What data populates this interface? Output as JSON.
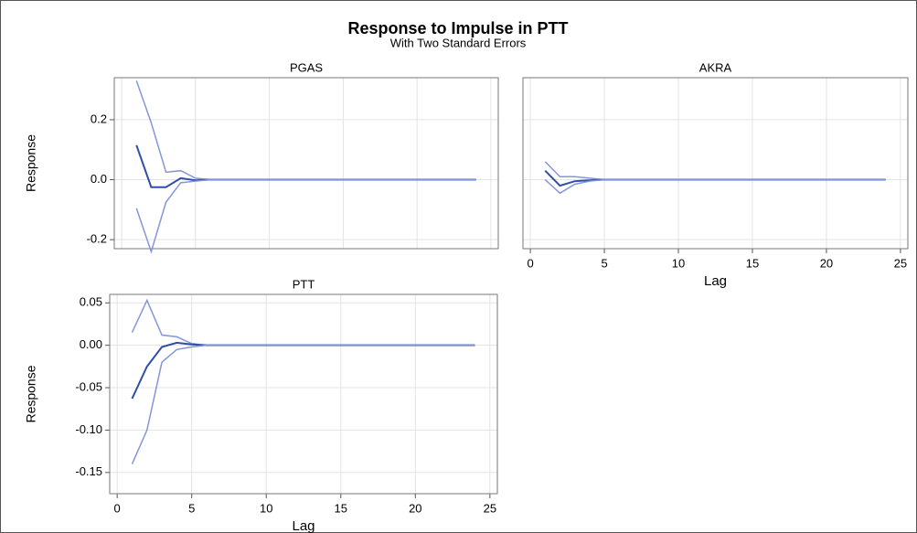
{
  "title": "Response to Impulse in PTT",
  "subtitle": "With Two Standard Errors",
  "chart_data": [
    {
      "type": "line",
      "title": "PGAS",
      "ylabel": "Response",
      "grid": true,
      "show_xtick_labels": false,
      "show_ytick_labels": true,
      "x": [
        1,
        2,
        3,
        4,
        5,
        6,
        7,
        8,
        9,
        10,
        11,
        12,
        13,
        14,
        15,
        16,
        17,
        18,
        19,
        20,
        21,
        22,
        23,
        24
      ],
      "xlim": [
        -0.5,
        25.5
      ],
      "xticks": [
        0,
        5,
        10,
        15,
        20,
        25
      ],
      "ylim": [
        -0.23,
        0.34
      ],
      "yticks": [
        -0.2,
        {
          "value": 0,
          "label": "0.0"
        },
        0.2
      ],
      "series": [
        {
          "color": "#8596d8",
          "values": [
            0.33,
            0.19,
            0.025,
            0.03,
            0.005,
            0,
            0,
            0,
            0,
            0,
            0,
            0,
            0,
            0,
            0,
            0,
            0,
            0,
            0,
            0,
            0,
            0,
            0,
            0
          ]
        },
        {
          "color": "#2f4ea8",
          "values": [
            0.115,
            -0.025,
            -0.025,
            0.005,
            -0.002,
            0,
            0,
            0,
            0,
            0,
            0,
            0,
            0,
            0,
            0,
            0,
            0,
            0,
            0,
            0,
            0,
            0,
            0,
            0
          ]
        },
        {
          "color": "#8596d8",
          "values": [
            -0.095,
            -0.24,
            -0.075,
            -0.01,
            -0.005,
            0,
            0,
            0,
            0,
            0,
            0,
            0,
            0,
            0,
            0,
            0,
            0,
            0,
            0,
            0,
            0,
            0,
            0,
            0
          ]
        }
      ]
    },
    {
      "type": "line",
      "title": "AKRA",
      "xlabel": "Lag",
      "grid": true,
      "show_xtick_labels": true,
      "show_ytick_labels": false,
      "x": [
        1,
        2,
        3,
        4,
        5,
        6,
        7,
        8,
        9,
        10,
        11,
        12,
        13,
        14,
        15,
        16,
        17,
        18,
        19,
        20,
        21,
        22,
        23,
        24
      ],
      "xlim": [
        -0.5,
        25.5
      ],
      "xticks": [
        0,
        5,
        10,
        15,
        20,
        25
      ],
      "ylim": [
        -0.23,
        0.34
      ],
      "yticks": [
        -0.2,
        0,
        0.2
      ],
      "series": [
        {
          "color": "#8596d8",
          "values": [
            0.06,
            0.01,
            0.01,
            0.005,
            0,
            0,
            0,
            0,
            0,
            0,
            0,
            0,
            0,
            0,
            0,
            0,
            0,
            0,
            0,
            0,
            0,
            0,
            0,
            0
          ]
        },
        {
          "color": "#2f4ea8",
          "values": [
            0.03,
            -0.02,
            -0.005,
            -0.002,
            0,
            0,
            0,
            0,
            0,
            0,
            0,
            0,
            0,
            0,
            0,
            0,
            0,
            0,
            0,
            0,
            0,
            0,
            0,
            0
          ]
        },
        {
          "color": "#8596d8",
          "values": [
            0,
            -0.045,
            -0.015,
            -0.005,
            0,
            0,
            0,
            0,
            0,
            0,
            0,
            0,
            0,
            0,
            0,
            0,
            0,
            0,
            0,
            0,
            0,
            0,
            0,
            0
          ]
        }
      ]
    },
    {
      "type": "line",
      "title": "PTT",
      "xlabel": "Lag",
      "ylabel": "Response",
      "grid": true,
      "show_xtick_labels": true,
      "show_ytick_labels": true,
      "x": [
        1,
        2,
        3,
        4,
        5,
        6,
        7,
        8,
        9,
        10,
        11,
        12,
        13,
        14,
        15,
        16,
        17,
        18,
        19,
        20,
        21,
        22,
        23,
        24
      ],
      "xlim": [
        -0.5,
        25.5
      ],
      "xticks": [
        0,
        5,
        10,
        15,
        20,
        25
      ],
      "ylim": [
        -0.175,
        0.06
      ],
      "yticks": [
        0.05,
        {
          "value": 0,
          "label": "0.00"
        },
        -0.05,
        {
          "value": -0.1,
          "label": "-0.10"
        },
        -0.15
      ],
      "series": [
        {
          "color": "#8596d8",
          "values": [
            0.015,
            0.053,
            0.012,
            0.01,
            0.002,
            0,
            0,
            0,
            0,
            0,
            0,
            0,
            0,
            0,
            0,
            0,
            0,
            0,
            0,
            0,
            0,
            0,
            0,
            0
          ]
        },
        {
          "color": "#2f4ea8",
          "values": [
            -0.063,
            -0.025,
            -0.002,
            0.003,
            0.001,
            0,
            0,
            0,
            0,
            0,
            0,
            0,
            0,
            0,
            0,
            0,
            0,
            0,
            0,
            0,
            0,
            0,
            0,
            0
          ]
        },
        {
          "color": "#8596d8",
          "values": [
            -0.14,
            -0.1,
            -0.02,
            -0.005,
            -0.002,
            0,
            0,
            0,
            0,
            0,
            0,
            0,
            0,
            0,
            0,
            0,
            0,
            0,
            0,
            0,
            0,
            0,
            0,
            0
          ]
        }
      ]
    }
  ]
}
